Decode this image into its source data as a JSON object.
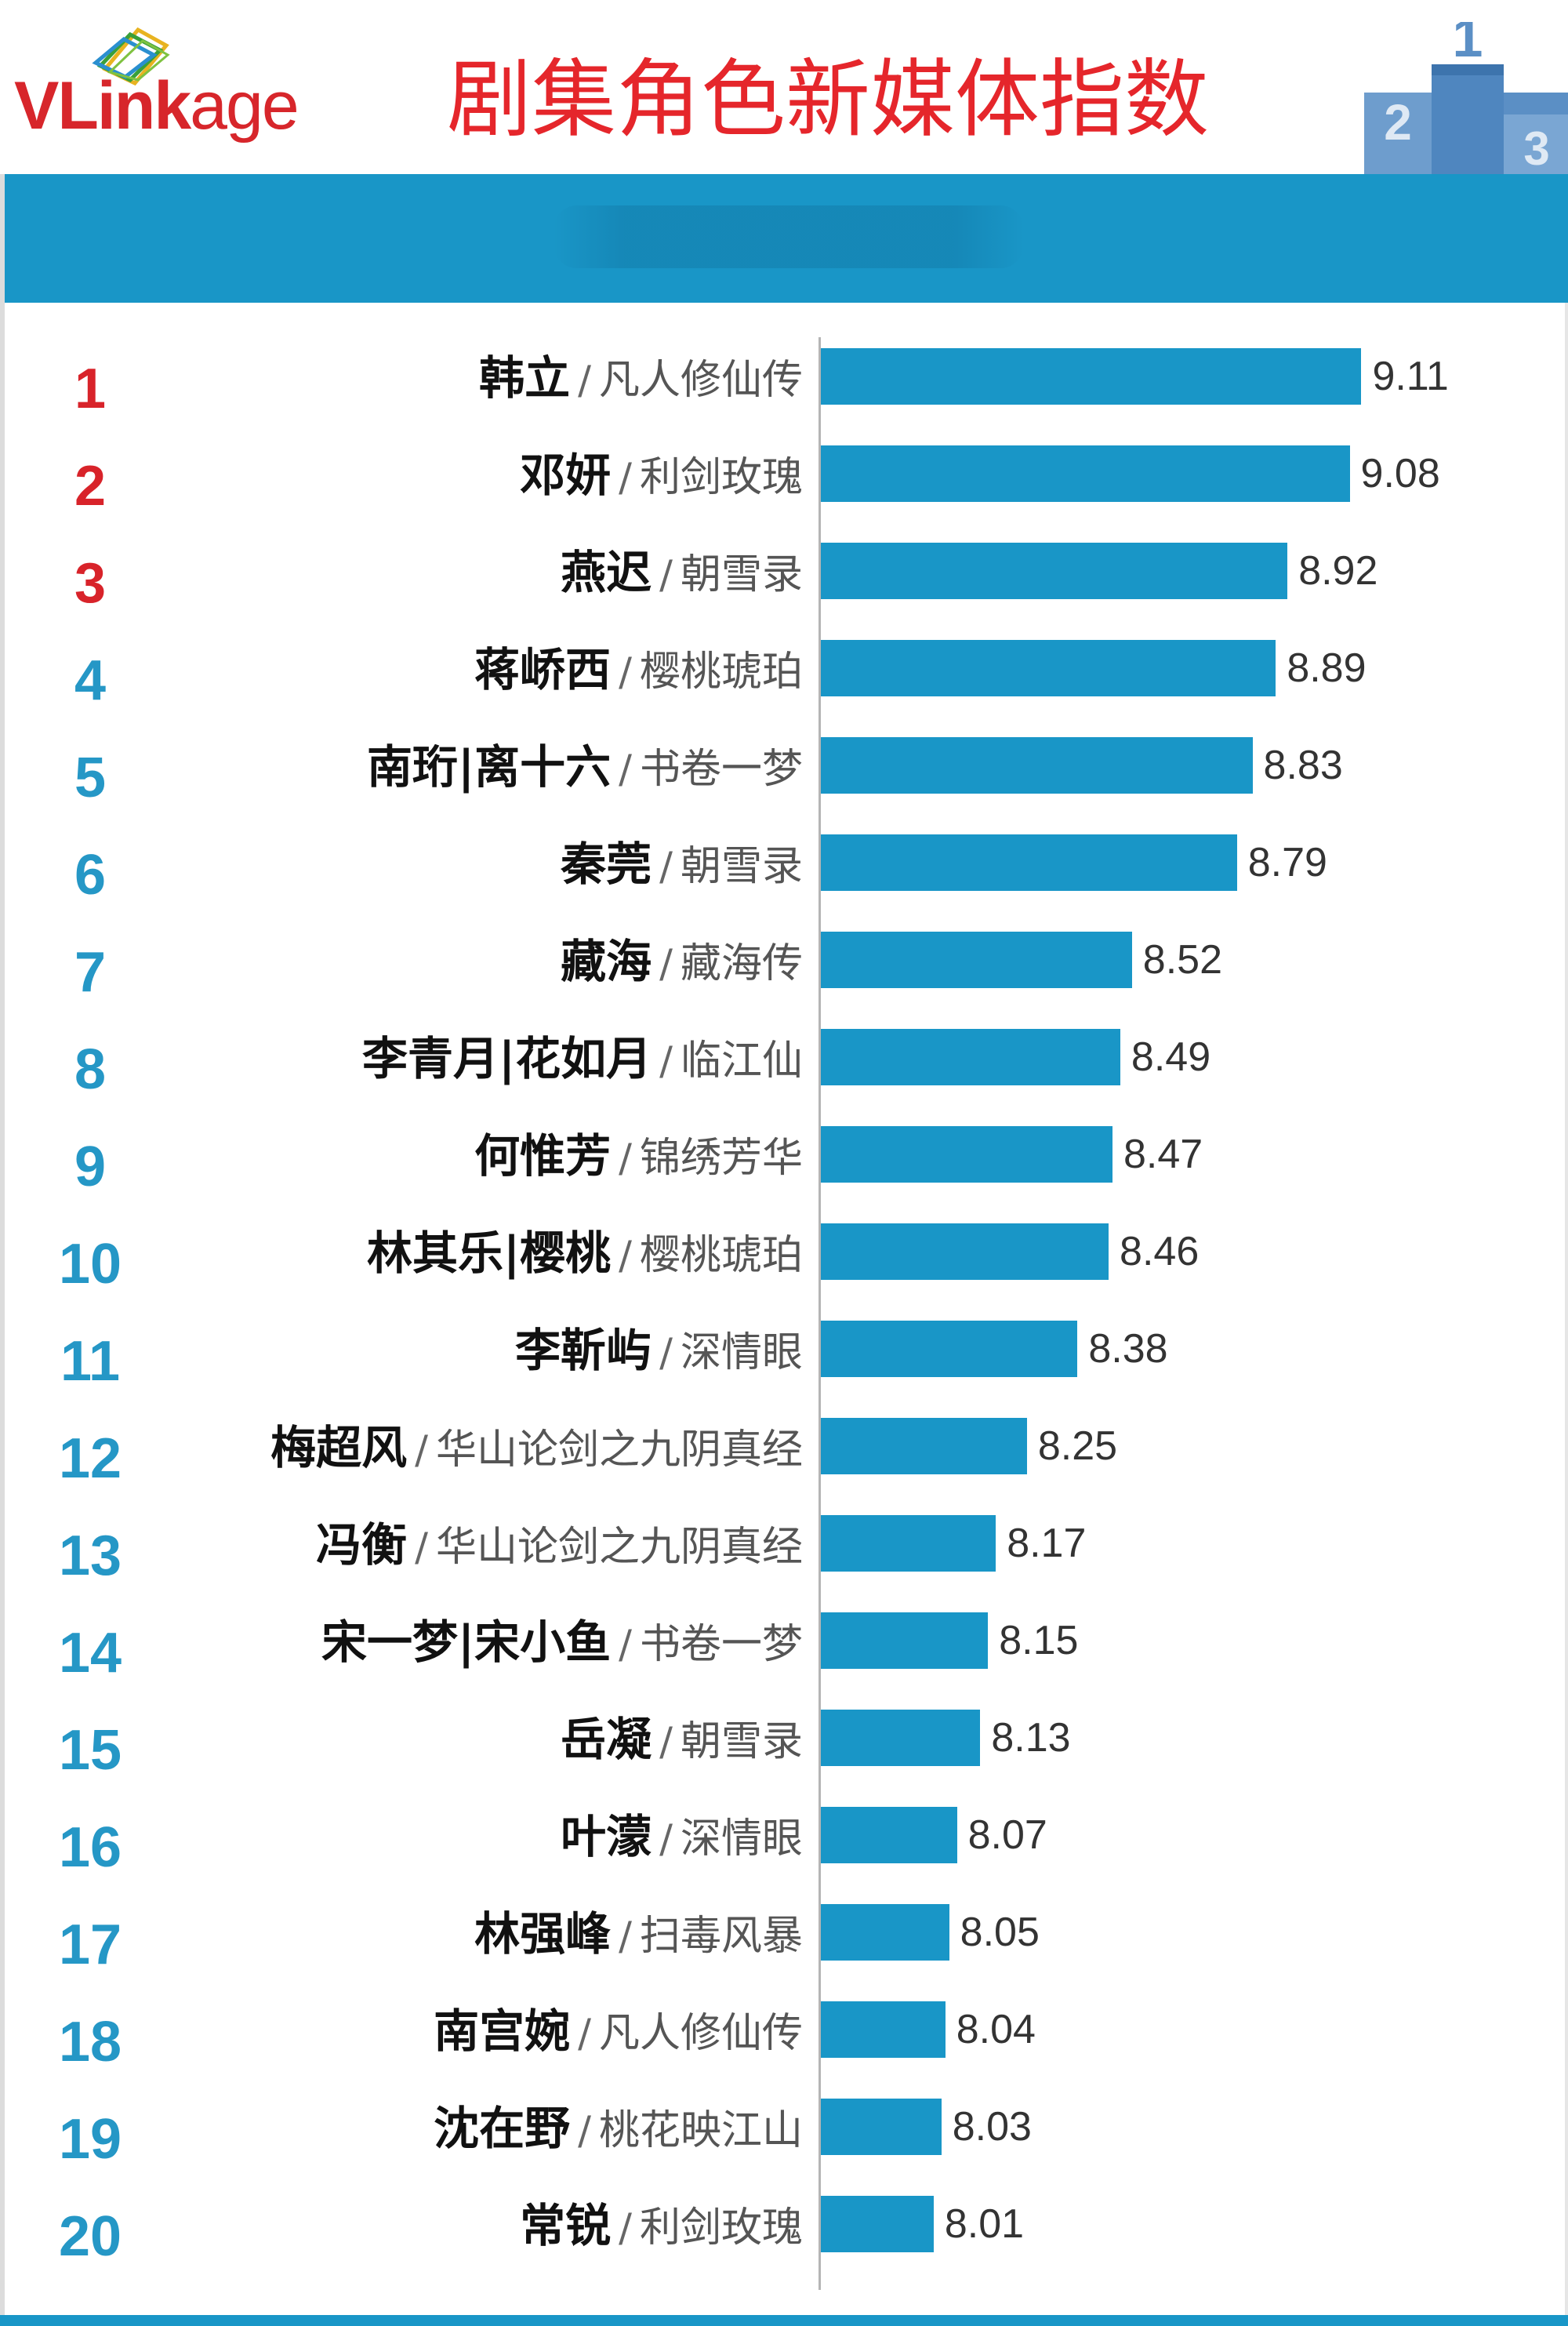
{
  "header": {
    "logo_text": "VLinkage",
    "title": "剧集角色新媒体指数",
    "podium_labels": [
      "2",
      "1",
      "3"
    ]
  },
  "colors": {
    "bar": "#1996c7",
    "title": "#e5262b",
    "rank_top": "#d8232a",
    "rank_rest": "#2597c6"
  },
  "chart_data": {
    "type": "bar",
    "orientation": "horizontal",
    "title": "剧集角色新媒体指数",
    "xlabel": "",
    "ylabel": "",
    "xlim": [
      7.72,
      9.27
    ],
    "grid": false,
    "legend": "none",
    "items": [
      {
        "rank": "1",
        "name": "韩立",
        "drama": "凡人修仙传",
        "value": 9.11
      },
      {
        "rank": "2",
        "name": "邓妍",
        "drama": "利剑玫瑰",
        "value": 9.08
      },
      {
        "rank": "3",
        "name": "燕迟",
        "drama": "朝雪录",
        "value": 8.92
      },
      {
        "rank": "4",
        "name": "蒋峤西",
        "drama": "樱桃琥珀",
        "value": 8.89
      },
      {
        "rank": "5",
        "name": "南珩|离十六",
        "drama": "书卷一梦",
        "value": 8.83
      },
      {
        "rank": "6",
        "name": "秦莞",
        "drama": "朝雪录",
        "value": 8.79
      },
      {
        "rank": "7",
        "name": "藏海",
        "drama": "藏海传",
        "value": 8.52
      },
      {
        "rank": "8",
        "name": "李青月|花如月",
        "drama": "临江仙",
        "value": 8.49
      },
      {
        "rank": "9",
        "name": "何惟芳",
        "drama": "锦绣芳华",
        "value": 8.47
      },
      {
        "rank": "10",
        "name": "林其乐|樱桃",
        "drama": "樱桃琥珀",
        "value": 8.46
      },
      {
        "rank": "11",
        "name": "李靳屿",
        "drama": "深情眼",
        "value": 8.38
      },
      {
        "rank": "12",
        "name": "梅超风",
        "drama": "华山论剑之九阴真经",
        "value": 8.25
      },
      {
        "rank": "13",
        "name": "冯衡",
        "drama": "华山论剑之九阴真经",
        "value": 8.17
      },
      {
        "rank": "14",
        "name": "宋一梦|宋小鱼",
        "drama": "书卷一梦",
        "value": 8.15
      },
      {
        "rank": "15",
        "name": "岳凝",
        "drama": "朝雪录",
        "value": 8.13
      },
      {
        "rank": "16",
        "name": "叶濛",
        "drama": "深情眼",
        "value": 8.07
      },
      {
        "rank": "17",
        "name": "林强峰",
        "drama": "扫毒风暴",
        "value": 8.05
      },
      {
        "rank": "18",
        "name": "南宫婉",
        "drama": "凡人修仙传",
        "value": 8.04
      },
      {
        "rank": "19",
        "name": "沈在野",
        "drama": "桃花映江山",
        "value": 8.03
      },
      {
        "rank": "20",
        "name": "常锐",
        "drama": "利剑玫瑰",
        "value": 8.01
      }
    ]
  }
}
